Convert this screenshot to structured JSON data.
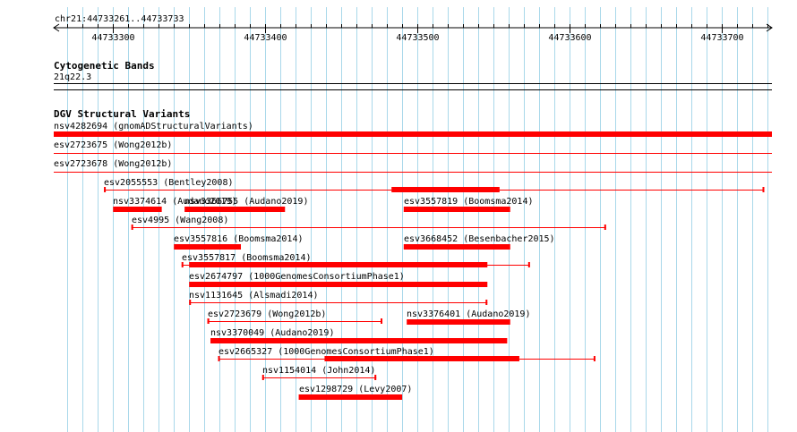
{
  "location": "chr21:44733261..44733733",
  "ruler": {
    "start": 44733261,
    "end": 44733733,
    "ticks": [
      "44733300",
      "44733400",
      "44733500",
      "44733600",
      "44733700"
    ]
  },
  "tracks": {
    "cytoband": {
      "title": "Cytogenetic Bands",
      "band": "21q22.3"
    },
    "dgv": {
      "title": "DGV Structural Variants"
    }
  },
  "colors": {
    "feature": "#ff0000",
    "grid": "#a9d8ea",
    "axis": "#000000"
  },
  "variants": [
    {
      "label": "nsv4282694 (gnomADStructuralVariants)",
      "start": 44733261,
      "end": 44733733,
      "row": 0,
      "style": "full"
    },
    {
      "label": "esv2723675 (Wong2012b)",
      "start": 44733261,
      "end": 44733733,
      "row": 1,
      "style": "line"
    },
    {
      "label": "esv2723678 (Wong2012b)",
      "start": 44733261,
      "end": 44733733,
      "row": 2,
      "style": "line"
    },
    {
      "label": "esv2055553 (Bentley2008)",
      "start": 44733294,
      "end": 44733728,
      "row": 3,
      "style": "cap",
      "thickStart": 44733483,
      "thickEnd": 44733554
    },
    {
      "label": "nsv3374614 (Audano2019)",
      "start": 44733300,
      "end": 44733332,
      "row": 4,
      "style": "block"
    },
    {
      "label": "nsv3366755 (Audano2019)",
      "start": 44733347,
      "end": 44733413,
      "row": 4,
      "style": "block"
    },
    {
      "label": "esv3557819 (Boomsma2014)",
      "start": 44733491,
      "end": 44733561,
      "row": 4,
      "style": "block"
    },
    {
      "label": "esv4995 (Wang2008)",
      "start": 44733312,
      "end": 44733624,
      "row": 5,
      "style": "cap"
    },
    {
      "label": "esv3557816 (Boomsma2014)",
      "start": 44733340,
      "end": 44733384,
      "row": 6,
      "style": "block"
    },
    {
      "label": "esv3668452 (Besenbacher2015)",
      "start": 44733491,
      "end": 44733561,
      "row": 6,
      "style": "block"
    },
    {
      "label": "esv3557817 (Boomsma2014)",
      "start": 44733345,
      "end": 44733574,
      "row": 7,
      "style": "cap",
      "thickStart": 44733350,
      "thickEnd": 44733546
    },
    {
      "label": "esv2674797 (1000GenomesConsortiumPhase1)",
      "start": 44733350,
      "end": 44733546,
      "row": 8,
      "style": "block"
    },
    {
      "label": "nsv1131645 (Alsmadi2014)",
      "start": 44733350,
      "end": 44733546,
      "row": 9,
      "style": "cap"
    },
    {
      "label": "esv2723679 (Wong2012b)",
      "start": 44733362,
      "end": 44733477,
      "row": 10,
      "style": "cap",
      "thickStart": 44733362,
      "thickEnd": 44733363
    },
    {
      "label": "nsv3376401 (Audano2019)",
      "start": 44733493,
      "end": 44733561,
      "row": 10,
      "style": "block"
    },
    {
      "label": "nsv3370049 (Audano2019)",
      "start": 44733364,
      "end": 44733559,
      "row": 11,
      "style": "block"
    },
    {
      "label": "esv2665327 (1000GenomesConsortiumPhase1)",
      "start": 44733369,
      "end": 44733617,
      "row": 12,
      "style": "cap",
      "thickStart": 44733439,
      "thickEnd": 44733567
    },
    {
      "label": "nsv1154014 (John2014)",
      "start": 44733398,
      "end": 44733473,
      "row": 13,
      "style": "cap"
    },
    {
      "label": "esv1298729 (Levy2007)",
      "start": 44733422,
      "end": 44733490,
      "row": 14,
      "style": "block"
    }
  ]
}
